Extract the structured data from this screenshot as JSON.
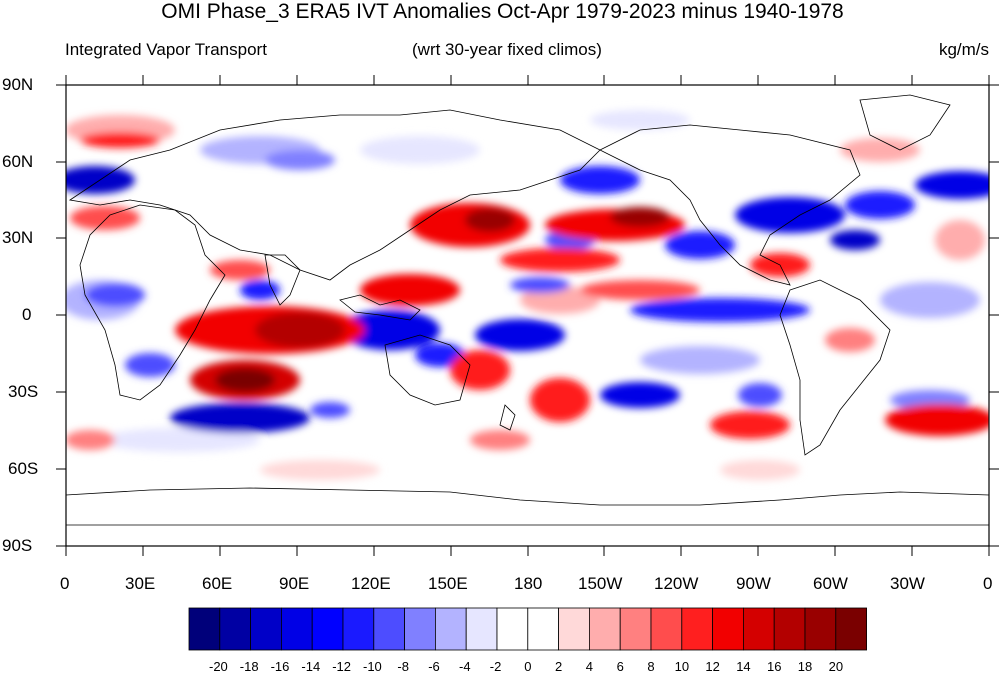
{
  "title": "OMI Phase_3 ERA5 IVT Anomalies Oct-Apr 1979-2023 minus 1940-1978",
  "subtitle_left": "Integrated Vapor Transport",
  "subtitle_center": "(wrt 30-year fixed climos)",
  "subtitle_right": "kg/m/s",
  "lat_labels": [
    "90N",
    "60N",
    "30N",
    "0",
    "30S",
    "60S",
    "90S"
  ],
  "lon_labels": [
    "0",
    "30E",
    "60E",
    "90E",
    "120E",
    "150E",
    "180",
    "150W",
    "120W",
    "90W",
    "60W",
    "30W",
    "0"
  ],
  "colorbar": {
    "levels": [
      "-20",
      "-18",
      "-16",
      "-14",
      "-12",
      "-10",
      "-8",
      "-6",
      "-4",
      "-2",
      "0",
      "2",
      "4",
      "6",
      "8",
      "10",
      "12",
      "14",
      "16",
      "18",
      "20"
    ],
    "colors": [
      "#00007a",
      "#0000a3",
      "#0000c8",
      "#0000e6",
      "#0000ff",
      "#1a1aff",
      "#4d4dff",
      "#8080ff",
      "#b3b3ff",
      "#e6e6ff",
      "#ffffff",
      "#ffffff",
      "#ffd9d9",
      "#ffadad",
      "#ff8080",
      "#ff4d4d",
      "#ff1f1f",
      "#f20000",
      "#d40000",
      "#b30000",
      "#990000",
      "#7a0000"
    ]
  }
}
